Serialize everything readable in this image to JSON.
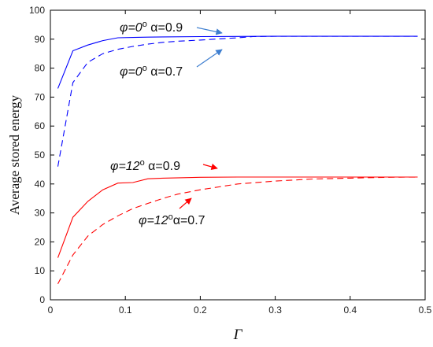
{
  "chart_data": {
    "type": "line",
    "xlabel": "Γ",
    "ylabel": "Average stored energy",
    "xlim": [
      0,
      0.5
    ],
    "ylim": [
      0,
      100
    ],
    "xticks": [
      0,
      0.1,
      0.2,
      0.3,
      0.4,
      0.5
    ],
    "xtick_labels": [
      "0",
      "0.1",
      "0.2",
      "0.3",
      "0.4",
      "0.5"
    ],
    "yticks": [
      0,
      10,
      20,
      30,
      40,
      50,
      60,
      70,
      80,
      90,
      100
    ],
    "ytick_labels": [
      "0",
      "10",
      "20",
      "30",
      "40",
      "50",
      "60",
      "70",
      "80",
      "90",
      "100"
    ],
    "grid": false,
    "series": [
      {
        "color": "#0000ff",
        "dash": "solid",
        "x": [
          0.01,
          0.03,
          0.05,
          0.07,
          0.09,
          0.11,
          0.13,
          0.15,
          0.2,
          0.25,
          0.3,
          0.35,
          0.4,
          0.45,
          0.49
        ],
        "y": [
          73,
          86,
          88,
          89.5,
          90.5,
          90.6,
          90.7,
          90.8,
          90.9,
          90.95,
          91,
          91,
          91,
          91,
          91
        ]
      },
      {
        "color": "#0000ff",
        "dash": "dashed",
        "x": [
          0.01,
          0.03,
          0.05,
          0.07,
          0.09,
          0.11,
          0.13,
          0.15,
          0.17,
          0.2,
          0.25,
          0.27,
          0.3,
          0.35,
          0.4,
          0.45,
          0.49
        ],
        "y": [
          46,
          75,
          82,
          85,
          86.5,
          87.5,
          88.3,
          88.9,
          89.3,
          89.7,
          90.5,
          90.9,
          91,
          91,
          91,
          91,
          91
        ]
      },
      {
        "color": "#ff0000",
        "dash": "solid",
        "x": [
          0.01,
          0.03,
          0.05,
          0.07,
          0.09,
          0.11,
          0.13,
          0.15,
          0.2,
          0.25,
          0.3,
          0.35,
          0.4,
          0.45,
          0.49
        ],
        "y": [
          14.5,
          28.5,
          34,
          38,
          40.3,
          40.5,
          41.8,
          42,
          42.3,
          42.4,
          42.4,
          42.4,
          42.4,
          42.4,
          42.4
        ]
      },
      {
        "color": "#ff0000",
        "dash": "dashed",
        "x": [
          0.01,
          0.03,
          0.05,
          0.07,
          0.09,
          0.11,
          0.13,
          0.15,
          0.17,
          0.2,
          0.25,
          0.3,
          0.35,
          0.4,
          0.45,
          0.49
        ],
        "y": [
          5.5,
          15.5,
          22,
          26,
          29,
          31.5,
          33.3,
          35,
          36.5,
          38,
          40,
          41,
          41.7,
          42,
          42.3,
          42.4
        ]
      }
    ],
    "annotations": [
      {
        "phi": "φ=0",
        "deg": "o",
        "alpha": " α=0.9",
        "color": "#3f7fd0"
      },
      {
        "phi": "φ=0",
        "deg": "o",
        "alpha": " α=0.7",
        "color": "#3f7fd0"
      },
      {
        "phi": "φ=12",
        "deg": "o",
        "alpha": " α=0.9",
        "color": "#ff0000"
      },
      {
        "phi": "φ=12",
        "deg": "o",
        "alpha": "α=0.7",
        "color": "#ff0000"
      }
    ]
  }
}
